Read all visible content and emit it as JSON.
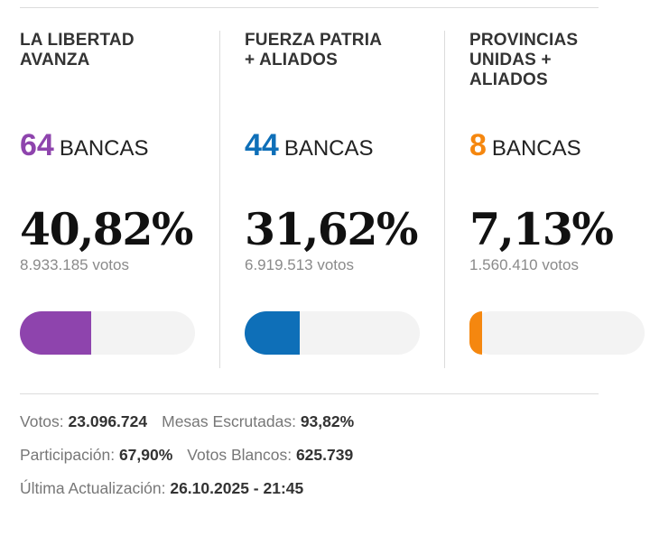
{
  "parties": [
    {
      "name": "LA LIBERTAD\nAVANZA",
      "seats": "64",
      "seats_label": "BANCAS",
      "percent": "40,82%",
      "votes": "8.933.185 votos",
      "share": 0.4082,
      "color": "#8e44ad"
    },
    {
      "name": "FUERZA PATRIA\n+ ALIADOS",
      "seats": "44",
      "seats_label": "BANCAS",
      "percent": "31,62%",
      "votes": "6.919.513 votos",
      "share": 0.3162,
      "color": "#0e6fb8"
    },
    {
      "name": "PROVINCIAS\nUNIDAS +\nALIADOS",
      "seats": "8",
      "seats_label": "BANCAS",
      "percent": "7,13%",
      "votes": "1.560.410 votos",
      "share": 0.0713,
      "color": "#f5870f"
    }
  ],
  "stats": {
    "votos_label": "Votos:",
    "votos_value": "23.096.724",
    "mesas_label": "Mesas Escrutadas:",
    "mesas_value": "93,82%",
    "participacion_label": "Participación:",
    "participacion_value": "67,90%",
    "blancos_label": "Votos Blancos:",
    "blancos_value": "625.739",
    "actualizacion_label": "Última Actualización:",
    "actualizacion_value": "26.10.2025 - 21:45"
  }
}
